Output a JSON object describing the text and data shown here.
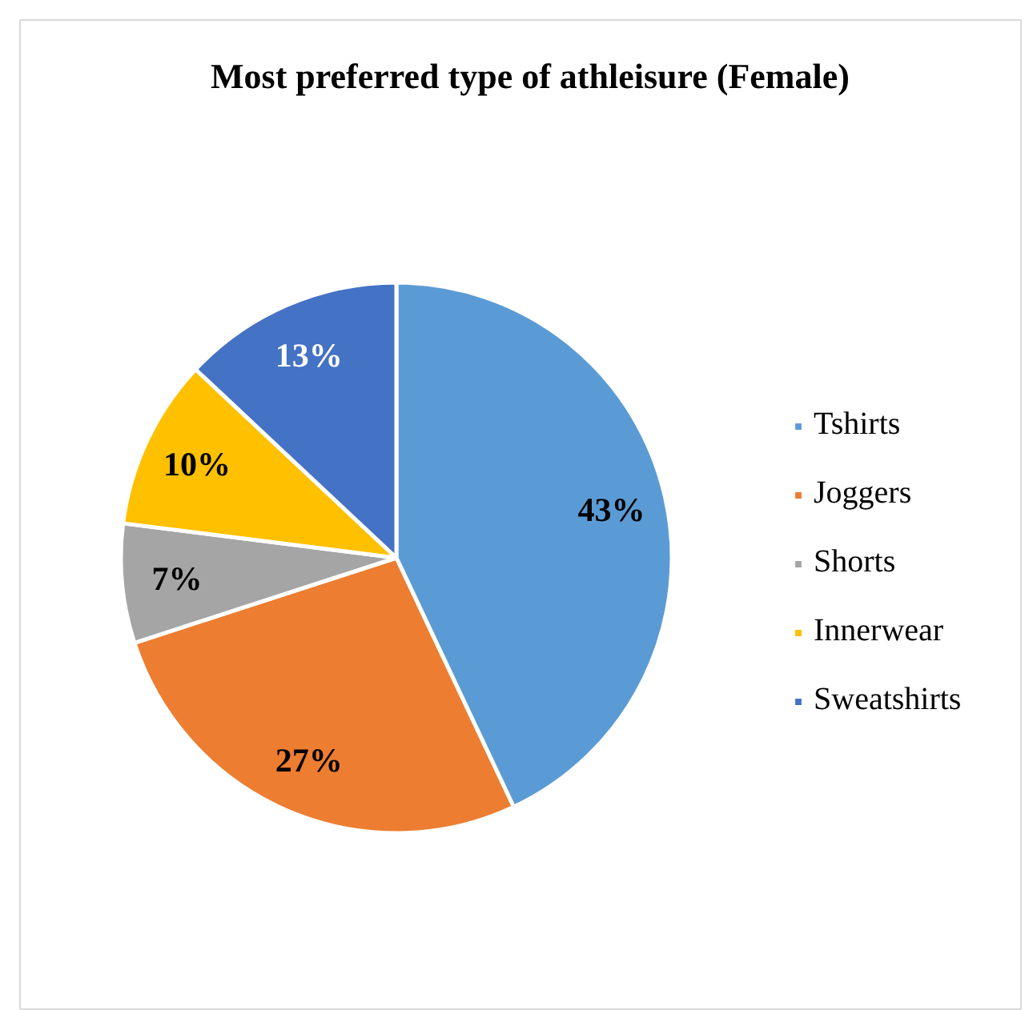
{
  "chart_data": {
    "type": "pie",
    "title": "Most preferred type of athleisure (Female)",
    "categories": [
      "Tshirts",
      "Joggers",
      "Shorts",
      "Innerwear",
      "Sweatshirts"
    ],
    "values": [
      43,
      27,
      7,
      10,
      13
    ],
    "colors": [
      "#5b9bd5",
      "#ed7d31",
      "#a5a5a5",
      "#ffc000",
      "#4472c4"
    ],
    "value_labels": [
      "43%",
      "27%",
      "7%",
      "10%",
      "13%"
    ],
    "legend": "right"
  }
}
